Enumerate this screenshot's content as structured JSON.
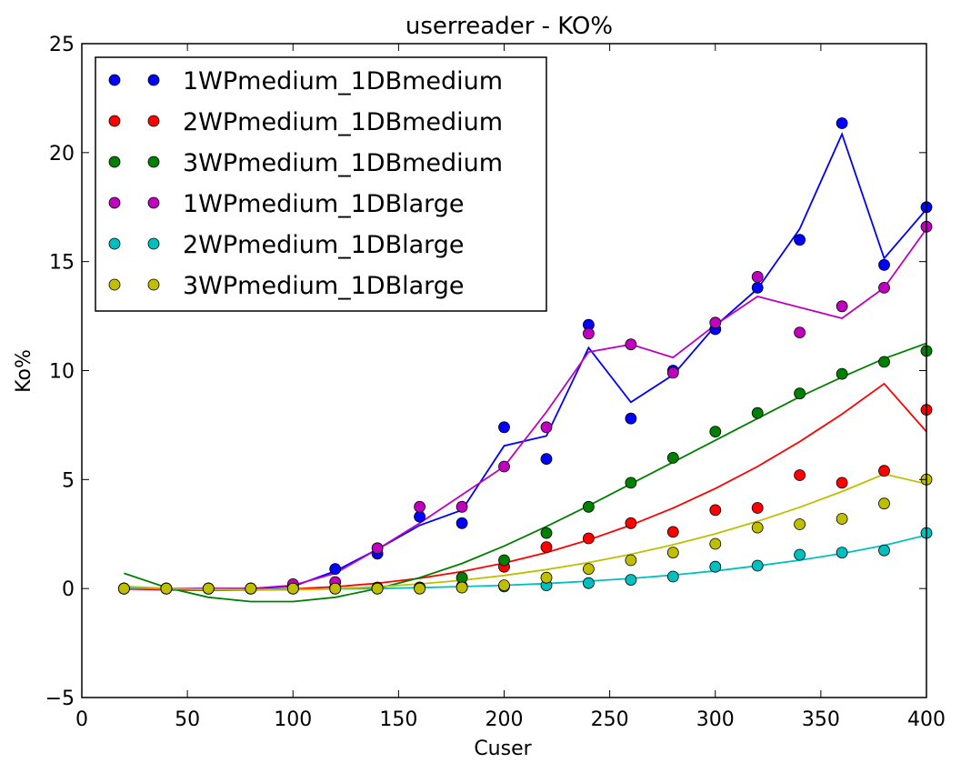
{
  "chart_data": {
    "type": "scatter",
    "title": "userreader  - KO%",
    "xlabel": "Cuser",
    "ylabel": "Ko%",
    "xlim": [
      0,
      400
    ],
    "ylim": [
      -5,
      25
    ],
    "xticks": [
      "0",
      "50",
      "100",
      "150",
      "200",
      "250",
      "300",
      "350",
      "400"
    ],
    "yticks": [
      "−5",
      "0",
      "5",
      "10",
      "15",
      "20",
      "25"
    ],
    "legend_position": "top-left",
    "grid": false,
    "x": [
      20,
      40,
      60,
      80,
      100,
      120,
      140,
      160,
      180,
      200,
      220,
      240,
      260,
      280,
      300,
      320,
      340,
      360,
      380,
      400
    ],
    "series": [
      {
        "name": "1WPmedium_1DBmedium",
        "color": "#0000ff",
        "markers": [
          0,
          0,
          0,
          0,
          0.1,
          0.9,
          1.6,
          3.3,
          3.0,
          7.4,
          5.95,
          12.1,
          7.8,
          10.0,
          11.9,
          13.8,
          16.0,
          21.35,
          14.85,
          17.5
        ],
        "fit": [
          0,
          0,
          0,
          0,
          0.1,
          0.8,
          1.8,
          2.9,
          3.6,
          6.55,
          7.0,
          11.05,
          8.55,
          9.8,
          12.05,
          13.75,
          16.5,
          20.85,
          15.15,
          17.4
        ]
      },
      {
        "name": "2WPmedium_1DBmedium",
        "color": "#ff0000",
        "markers": [
          0,
          0,
          0,
          0,
          0.05,
          0.05,
          0.05,
          0.05,
          0.1,
          1.0,
          1.9,
          2.3,
          3.0,
          2.6,
          3.6,
          3.7,
          5.2,
          4.85,
          5.4,
          8.2
        ],
        "fit": [
          -0.02,
          -0.06,
          -0.08,
          -0.07,
          -0.02,
          0.08,
          0.24,
          0.47,
          0.78,
          1.17,
          1.65,
          2.23,
          2.91,
          3.69,
          4.59,
          5.6,
          6.74,
          8.0,
          9.4,
          7.2
        ]
      },
      {
        "name": "3WPmedium_1DBmedium",
        "color": "#008000",
        "markers": [
          0,
          0,
          0,
          0,
          0,
          0,
          0,
          0.05,
          0.5,
          1.3,
          2.55,
          3.75,
          4.85,
          6.0,
          7.2,
          8.05,
          8.95,
          9.85,
          10.4,
          10.9
        ],
        "fit": [
          0.7,
          0.05,
          -0.4,
          -0.6,
          -0.6,
          -0.4,
          0.0,
          0.5,
          1.15,
          1.95,
          2.85,
          3.8,
          4.8,
          5.8,
          6.8,
          7.8,
          8.8,
          9.7,
          10.55,
          11.25
        ]
      },
      {
        "name": "1WPmedium_1DBlarge",
        "color": "#bf00bf",
        "markers": [
          0,
          0,
          0,
          0,
          0.2,
          0.3,
          1.85,
          3.75,
          3.75,
          5.6,
          7.4,
          11.7,
          11.2,
          9.9,
          12.2,
          14.3,
          11.75,
          12.95,
          13.8,
          16.6
        ],
        "fit": [
          0,
          0,
          0,
          0,
          0.15,
          0.7,
          1.8,
          3.0,
          4.3,
          5.6,
          8.1,
          10.85,
          11.2,
          10.6,
          12.1,
          13.4,
          12.9,
          12.4,
          13.8,
          16.5
        ]
      },
      {
        "name": "2WPmedium_1DBlarge",
        "color": "#00bfbf",
        "markers": [
          0,
          0,
          0,
          0,
          0,
          0,
          0,
          0,
          0.05,
          0.1,
          0.15,
          0.25,
          0.4,
          0.55,
          1.0,
          1.05,
          1.55,
          1.65,
          1.75,
          2.55
        ],
        "fit": [
          0.02,
          -0.01,
          -0.03,
          -0.04,
          -0.04,
          -0.02,
          0.0,
          0.04,
          0.09,
          0.15,
          0.23,
          0.34,
          0.46,
          0.62,
          0.81,
          1.04,
          1.3,
          1.61,
          1.98,
          2.45
        ]
      },
      {
        "name": "3WPmedium_1DBlarge",
        "color": "#bfbf00",
        "markers": [
          0,
          0,
          0,
          0,
          0,
          0,
          0,
          0,
          0.05,
          0.15,
          0.5,
          0.9,
          1.3,
          1.65,
          2.05,
          2.8,
          2.95,
          3.2,
          3.9,
          5.0
        ],
        "fit": [
          0.1,
          0.01,
          -0.05,
          -0.07,
          -0.06,
          -0.01,
          0.08,
          0.21,
          0.38,
          0.6,
          0.87,
          1.19,
          1.57,
          2.01,
          2.51,
          3.08,
          3.73,
          4.45,
          5.25,
          4.8
        ]
      }
    ]
  }
}
